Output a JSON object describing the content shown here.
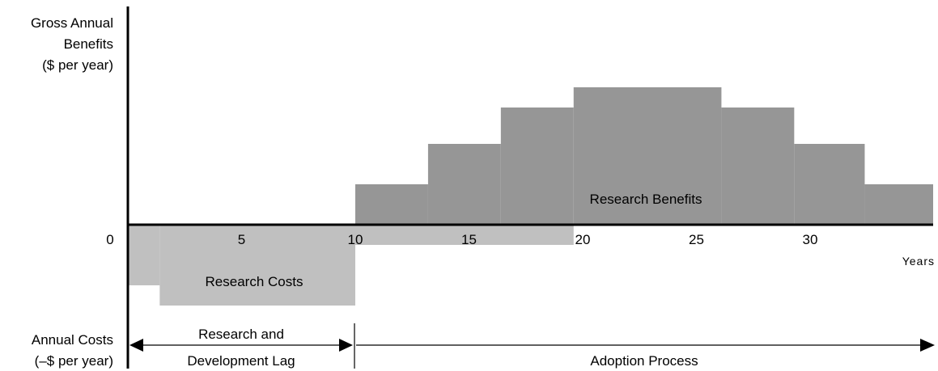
{
  "colors": {
    "benefits": "#969696",
    "costs": "#c0c0c0",
    "axis": "#000000"
  },
  "y_axis": {
    "top_label_lines": [
      "Gross Annual",
      "Benefits",
      "($ per year)"
    ],
    "bottom_label_lines": [
      "Annual Costs",
      "(–$ per year)"
    ]
  },
  "x_axis": {
    "zero_label": "0",
    "ticks": [
      {
        "value": 5,
        "label": "5"
      },
      {
        "value": 10,
        "label": "10"
      },
      {
        "value": 15,
        "label": "15"
      },
      {
        "value": 20,
        "label": "20"
      },
      {
        "value": 25,
        "label": "25"
      },
      {
        "value": 30,
        "label": "30"
      }
    ],
    "unit": "Years",
    "range": [
      0,
      30
    ]
  },
  "chart_data": {
    "type": "area",
    "x_unit": "years",
    "benefits": {
      "label": "Research Benefits",
      "steps": [
        {
          "from": 10,
          "to": 13.2,
          "value": 1
        },
        {
          "from": 13.2,
          "to": 16.4,
          "value": 2
        },
        {
          "from": 16.4,
          "to": 19.6,
          "value": 2.9
        },
        {
          "from": 19.6,
          "to": 26.1,
          "value": 3.4
        },
        {
          "from": 26.1,
          "to": 29.3,
          "value": 2.9
        },
        {
          "from": 29.3,
          "to": 32.4,
          "value": 2
        },
        {
          "from": 32.4,
          "to": 35.6,
          "value": 1
        }
      ]
    },
    "costs": {
      "label": "Research Costs",
      "steps": [
        {
          "from": 0,
          "to": 1.4,
          "value": -1.5
        },
        {
          "from": 1.4,
          "to": 10,
          "value": -2
        },
        {
          "from": 10,
          "to": 19.6,
          "value": -0.5
        }
      ]
    },
    "y_range": [
      -2.5,
      4
    ]
  },
  "periods": {
    "rd_lag_lines": [
      "Research and",
      "Development Lag"
    ],
    "adoption": "Adoption Process"
  }
}
